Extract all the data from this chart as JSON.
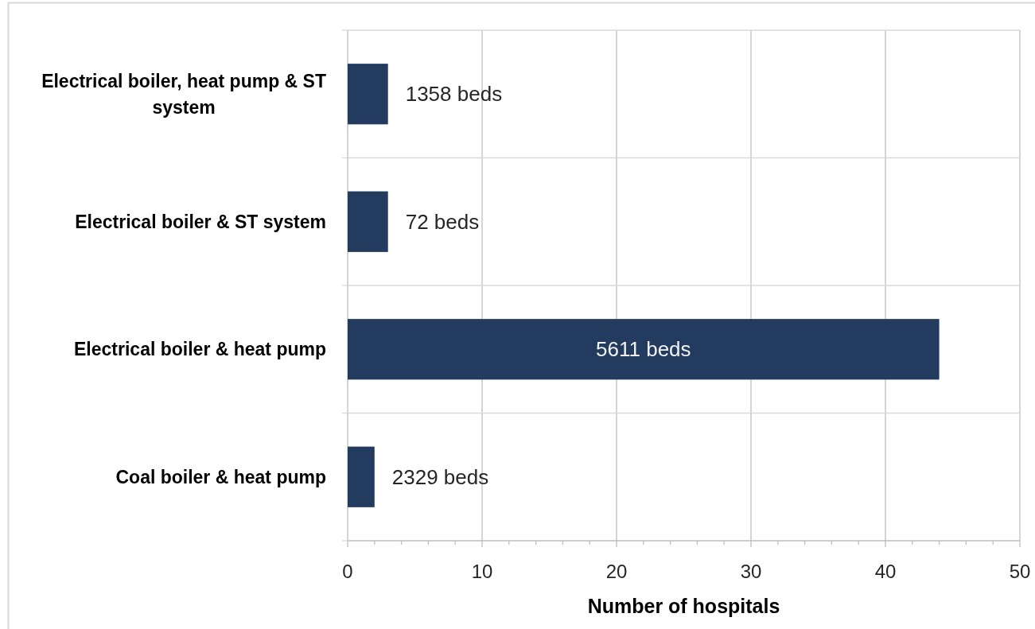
{
  "chart_data": {
    "type": "bar",
    "orientation": "horizontal",
    "xlabel": "Number of hospitals",
    "categories": [
      "Electrical boiler, heat pump & ST system",
      "Electrical boiler & ST system",
      "Electrical boiler & heat pump",
      "Coal boiler & heat pump"
    ],
    "values": [
      3,
      3,
      44,
      2
    ],
    "color": "#223b5e",
    "annotations": [
      "1358 beds",
      "72 beds",
      "5611 beds",
      "2329 beds"
    ],
    "xlim": [
      0,
      50
    ],
    "xticks": [
      0,
      {
        "value": 2,
        "label": null
      },
      {
        "value": 4,
        "label": null
      },
      {
        "value": 6,
        "label": null
      },
      {
        "value": 8,
        "label": null
      },
      10,
      {
        "value": 12,
        "label": null
      },
      {
        "value": 14,
        "label": null
      },
      {
        "value": 16,
        "label": null
      },
      {
        "value": 18,
        "label": null
      },
      20,
      {
        "value": 22,
        "label": null
      },
      {
        "value": 24,
        "label": null
      },
      {
        "value": 26,
        "label": null
      },
      {
        "value": 28,
        "label": null
      },
      30,
      {
        "value": 32,
        "label": null
      },
      {
        "value": 34,
        "label": null
      },
      {
        "value": 36,
        "label": null
      },
      {
        "value": 38,
        "label": null
      },
      40,
      {
        "value": 42,
        "label": null
      },
      {
        "value": 44,
        "label": null
      },
      {
        "value": 46,
        "label": null
      },
      {
        "value": 48,
        "label": null
      },
      50
    ],
    "grid": true
  }
}
